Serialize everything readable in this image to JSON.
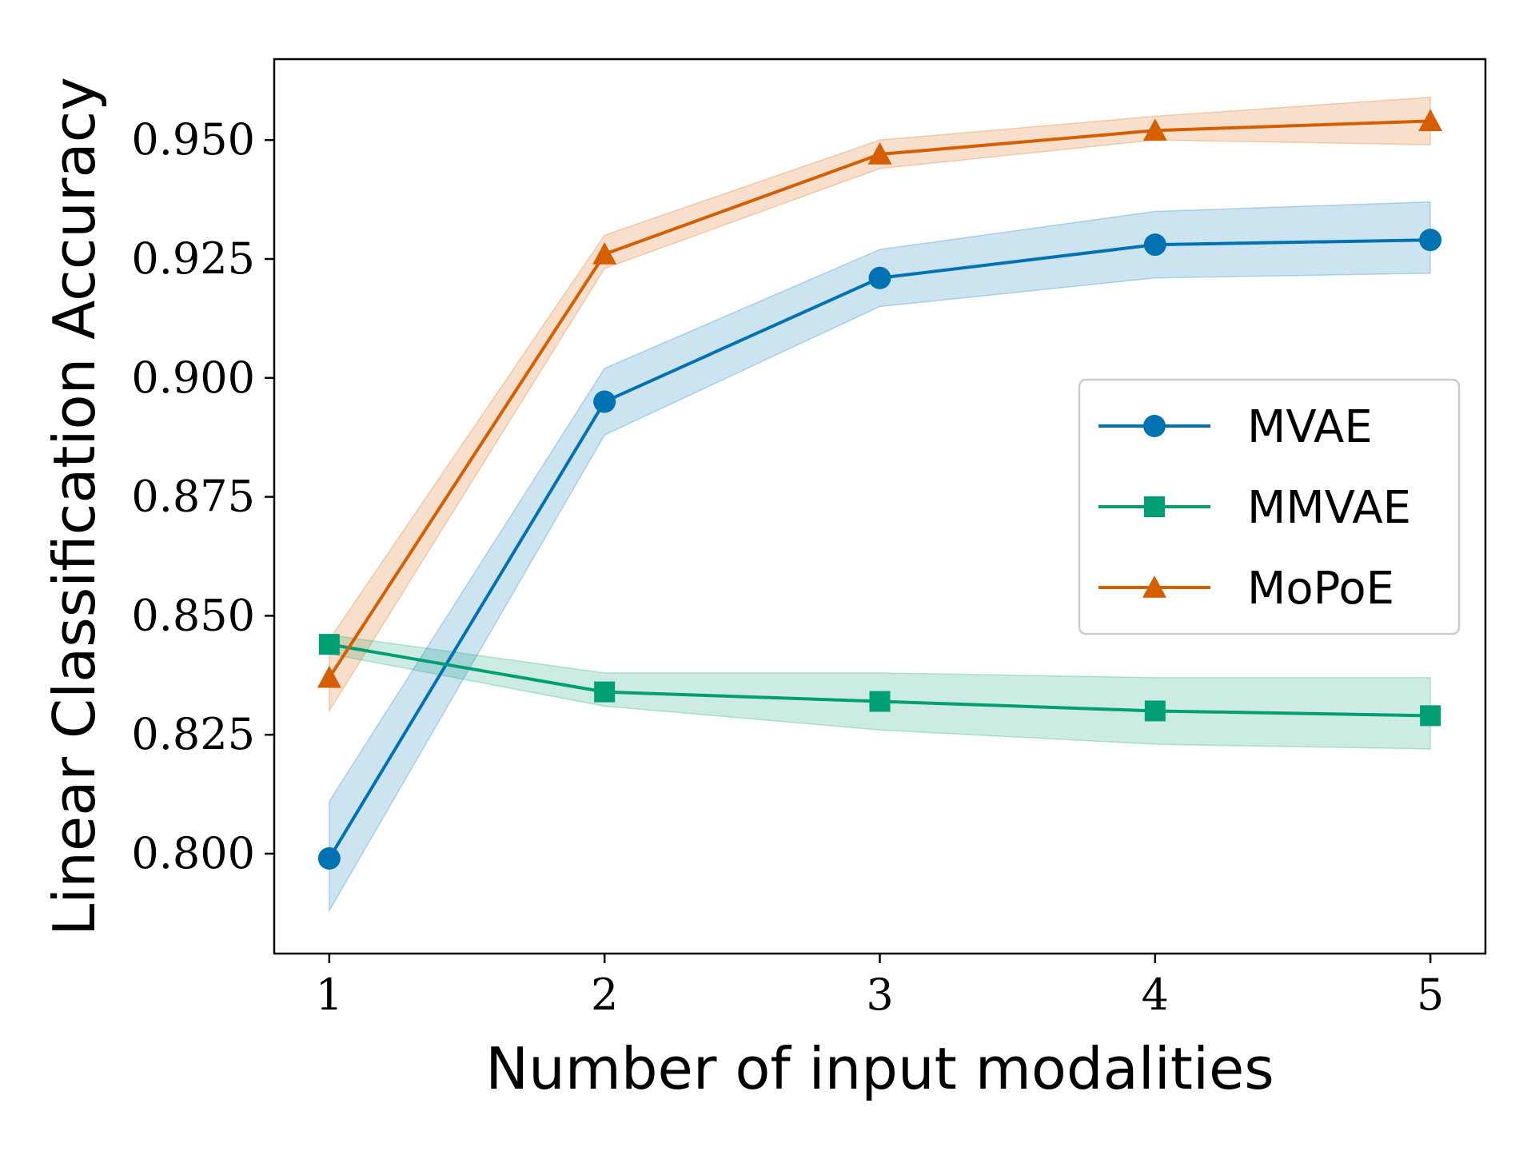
{
  "chart_data": {
    "type": "line",
    "title": "",
    "xlabel": "Number of input modalities",
    "ylabel": "Linear Classification Accuracy",
    "x": [
      1,
      2,
      3,
      4,
      5
    ],
    "xticks": [
      "1",
      "2",
      "3",
      "4",
      "5"
    ],
    "xlim": [
      0.8,
      5.2
    ],
    "yticks": [
      "0.800",
      "0.825",
      "0.850",
      "0.875",
      "0.900",
      "0.925",
      "0.950"
    ],
    "ytick_values": [
      0.8,
      0.825,
      0.85,
      0.875,
      0.9,
      0.925,
      0.95
    ],
    "ylim": [
      0.779,
      0.967
    ],
    "grid": false,
    "legend_position": "center-right",
    "series": [
      {
        "name": "MVAE",
        "color": "#0072b2",
        "marker": "circle",
        "values": [
          0.799,
          0.895,
          0.921,
          0.928,
          0.929
        ],
        "lower": [
          0.788,
          0.888,
          0.915,
          0.921,
          0.922
        ],
        "upper": [
          0.811,
          0.902,
          0.927,
          0.935,
          0.937
        ]
      },
      {
        "name": "MMVAE",
        "color": "#009e73",
        "marker": "square",
        "values": [
          0.844,
          0.834,
          0.832,
          0.83,
          0.829
        ],
        "lower": [
          0.842,
          0.831,
          0.826,
          0.823,
          0.822
        ],
        "upper": [
          0.846,
          0.838,
          0.838,
          0.837,
          0.837
        ]
      },
      {
        "name": "MoPoE",
        "color": "#d55e00",
        "marker": "triangle",
        "values": [
          0.837,
          0.926,
          0.947,
          0.952,
          0.954
        ],
        "lower": [
          0.83,
          0.923,
          0.944,
          0.95,
          0.949
        ],
        "upper": [
          0.845,
          0.93,
          0.95,
          0.955,
          0.959
        ]
      }
    ]
  }
}
